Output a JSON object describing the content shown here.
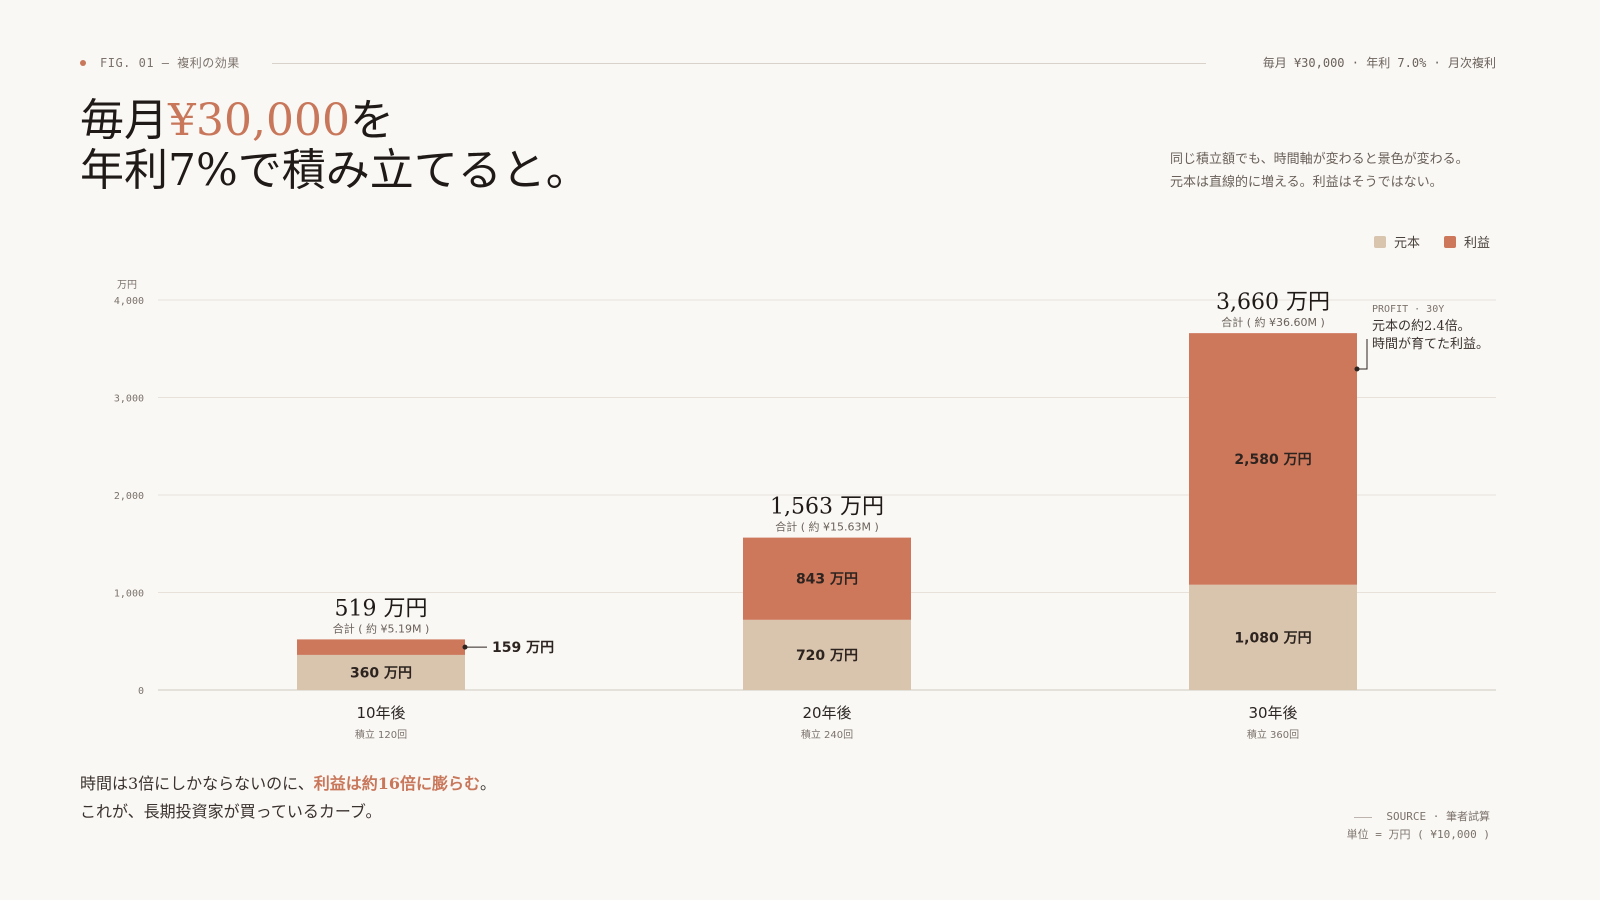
{
  "header": {
    "figure_label": "FIG. 01 — 複利の効果",
    "params": "毎月 ¥30,000 · 年利 7.0% · 月次複利"
  },
  "title": {
    "line1_pre": "毎月",
    "line1_accent": "¥30,000",
    "line1_post": "を",
    "line2": "年利7%で積み立てると。"
  },
  "lede": {
    "line1": "同じ積立額でも、時間軸が変わると景色が変わる。",
    "line2": "元本は直線的に増える。利益はそうではない。"
  },
  "legend": [
    {
      "label": "元本",
      "color": "#d9c4ad"
    },
    {
      "label": "利益",
      "color": "#cd775b"
    }
  ],
  "chart_data": {
    "type": "bar",
    "stacked": true,
    "unit_label": "万円",
    "categories": [
      "10年後",
      "20年後",
      "30年後"
    ],
    "category_sub": [
      "積立 120回",
      "積立 240回",
      "積立 360回"
    ],
    "series": [
      {
        "name": "元本",
        "values": [
          360,
          720,
          1080
        ],
        "labels": [
          "360 万円",
          "720 万円",
          "1,080 万円"
        ],
        "color": "#d9c4ad"
      },
      {
        "name": "利益",
        "values": [
          159,
          843,
          2580
        ],
        "labels": [
          "159 万円",
          "843 万円",
          "2,580 万円"
        ],
        "color": "#cd775b"
      }
    ],
    "totals": [
      519,
      1563,
      3660
    ],
    "total_labels": [
      "519 万円",
      "1,563 万円",
      "3,660 万円"
    ],
    "total_sub_labels": [
      "合計 ( 約 ¥5.19M )",
      "合計 ( 約 ¥15.63M )",
      "合計 ( 約 ¥36.60M )"
    ],
    "ylim": [
      0,
      4000
    ],
    "yticks": [
      0,
      1000,
      2000,
      3000,
      4000
    ],
    "ytick_labels": [
      "0",
      "1,000",
      "2,000",
      "3,000",
      "4,000"
    ],
    "grid": true,
    "legend_position": "top-right"
  },
  "annotation": {
    "label": "PROFIT · 30Y",
    "line1": "元本の約2.4倍。",
    "line2": "時間が育てた利益。"
  },
  "footer": {
    "line1_pre": "時間は3倍にしかならないのに、",
    "line1_accent": "利益は約16倍に膨らむ",
    "line1_post": "。",
    "line2": "これが、長期投資家が買っているカーブ。"
  },
  "source": {
    "line1": "SOURCE · 筆者試算",
    "line2": "単位 = 万円 ( ¥10,000 )"
  }
}
